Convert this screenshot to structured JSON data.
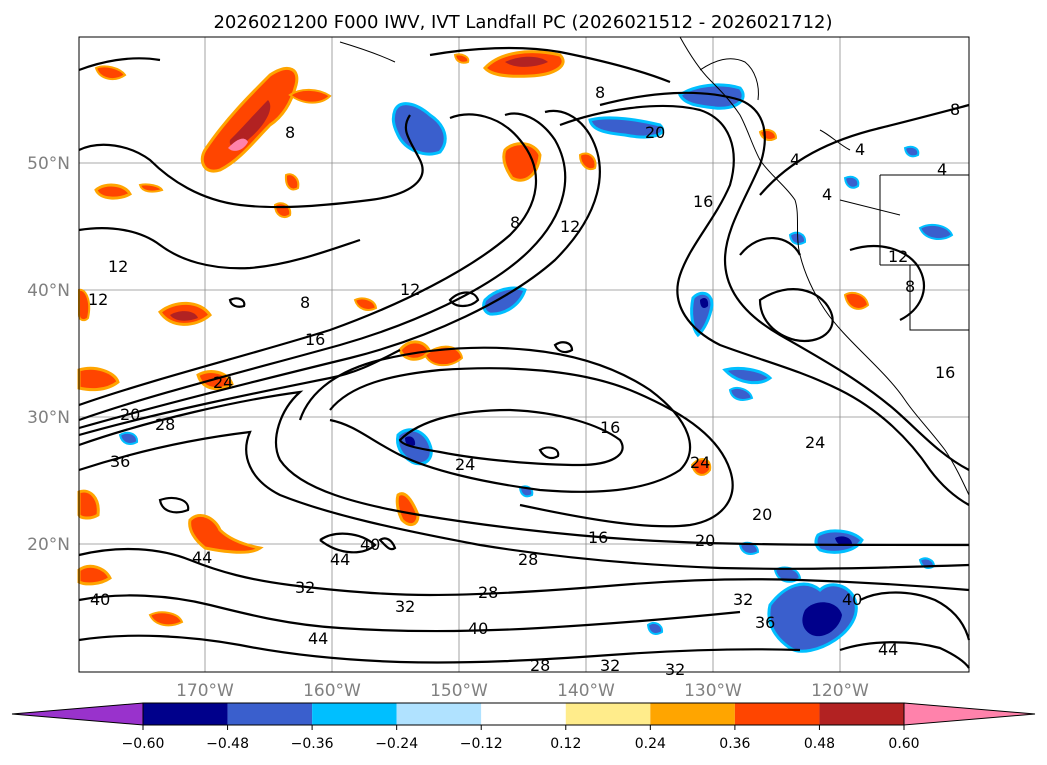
{
  "title": "2026021200 F000 IWV, IVT Landfall PC (2026021512 - 2026021712)",
  "lat_labels": [
    "50°N",
    "40°N",
    "30°N",
    "20°N"
  ],
  "lon_labels": [
    "170°W",
    "160°W",
    "150°W",
    "140°W",
    "130°W",
    "120°W"
  ],
  "colorbar": {
    "ticks": [
      "−0.60",
      "−0.48",
      "−0.36",
      "−0.24",
      "−0.12",
      "0.12",
      "0.24",
      "0.36",
      "0.48",
      "0.60"
    ],
    "colors": [
      "#9932cc",
      "#00008b",
      "#3a5fcd",
      "#00bfff",
      "#b0e2ff",
      "#ffffff",
      "#ffec8b",
      "#ffa500",
      "#ff4500",
      "#b22222",
      "#ff82ab"
    ]
  },
  "contour_labels": [
    "8",
    "12",
    "16",
    "20",
    "24",
    "28",
    "32",
    "36",
    "40",
    "44",
    "4"
  ],
  "fill_colors": {
    "dark_red": "#b22222",
    "orange_red": "#ff4500",
    "orange": "#ffa500",
    "yellow": "#ffec8b",
    "pink": "#ff82ab",
    "blue": "#3a5fcd",
    "navy": "#00008b",
    "sky": "#00bfff"
  }
}
